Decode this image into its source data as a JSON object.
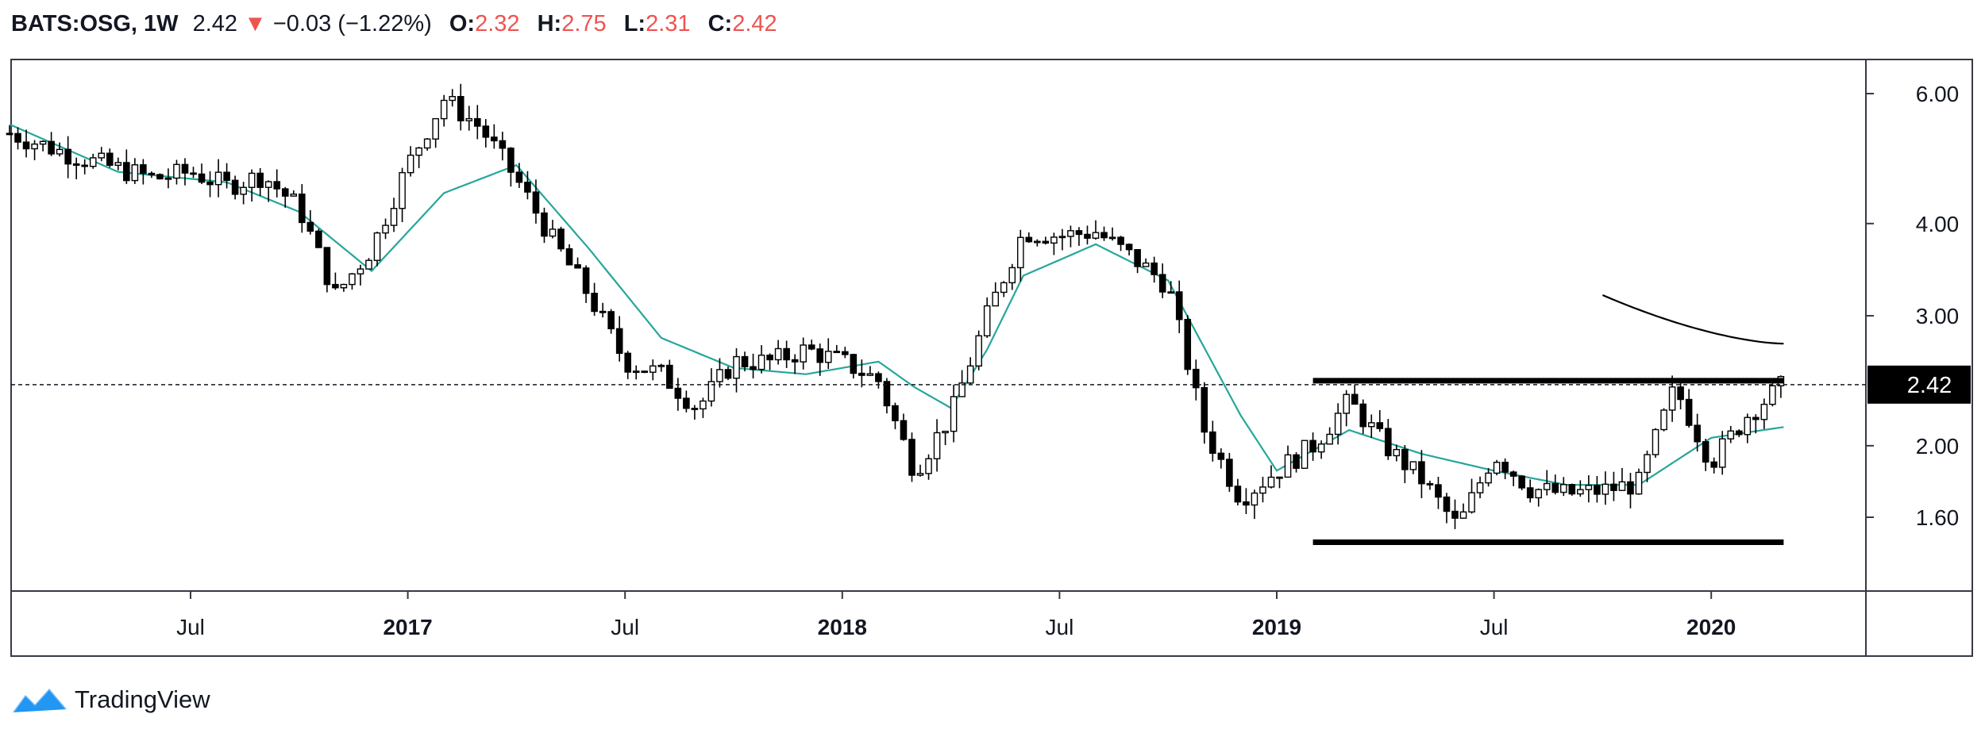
{
  "header": {
    "symbol": "BATS:OSG, 1W",
    "price": "2.42",
    "change": "−0.03 (−1.22%)",
    "open_label": "O:",
    "open": "2.32",
    "high_label": "H:",
    "high": "2.75",
    "low_label": "L:",
    "low": "2.31",
    "close_label": "C:",
    "close": "2.42",
    "down_color": "#ef5350"
  },
  "footer": {
    "brand": "TradingView",
    "logo_color": "#2196f3"
  },
  "chart_data": {
    "type": "candlestick",
    "symbol": "BATS:OSG",
    "interval": "1W",
    "y_scale": "log",
    "yticks": [
      "6.00",
      "4.00",
      "3.00",
      "2.00",
      "1.60"
    ],
    "xticks": [
      {
        "label": "Jul",
        "date": "2016-07",
        "bold": false
      },
      {
        "label": "2017",
        "date": "2017-01",
        "bold": true
      },
      {
        "label": "Jul",
        "date": "2017-07",
        "bold": false
      },
      {
        "label": "2018",
        "date": "2018-01",
        "bold": true
      },
      {
        "label": "Jul",
        "date": "2018-07",
        "bold": false
      },
      {
        "label": "2019",
        "date": "2019-01",
        "bold": true
      },
      {
        "label": "Jul",
        "date": "2019-07",
        "bold": false
      },
      {
        "label": "2020",
        "date": "2020-01",
        "bold": true
      }
    ],
    "last_price": "2.42",
    "price_path": [
      [
        "2016-02",
        5.3
      ],
      [
        "2016-04",
        4.9
      ],
      [
        "2016-06",
        4.6
      ],
      [
        "2016-07",
        4.7
      ],
      [
        "2016-08",
        4.5
      ],
      [
        "2016-09",
        4.65
      ],
      [
        "2016-10",
        4.2
      ],
      [
        "2016-11",
        3.2
      ],
      [
        "2016-12",
        3.7
      ],
      [
        "2017-01",
        4.8
      ],
      [
        "2017-02",
        5.9
      ],
      [
        "2017-03",
        5.4
      ],
      [
        "2017-04",
        4.6
      ],
      [
        "2017-05",
        3.8
      ],
      [
        "2017-06",
        3.2
      ],
      [
        "2017-07",
        2.6
      ],
      [
        "2017-08",
        2.5
      ],
      [
        "2017-09",
        2.25
      ],
      [
        "2017-10",
        2.6
      ],
      [
        "2017-11",
        2.6
      ],
      [
        "2017-12",
        2.7
      ],
      [
        "2018-01",
        2.6
      ],
      [
        "2018-02",
        2.45
      ],
      [
        "2018-03",
        1.85
      ],
      [
        "2018-04",
        2.2
      ],
      [
        "2018-05",
        3.0
      ],
      [
        "2018-06",
        3.9
      ],
      [
        "2018-07",
        3.85
      ],
      [
        "2018-08",
        3.9
      ],
      [
        "2018-09",
        3.6
      ],
      [
        "2018-10",
        3.3
      ],
      [
        "2018-11",
        2.1
      ],
      [
        "2018-12",
        1.7
      ],
      [
        "2019-01",
        1.85
      ],
      [
        "2019-02",
        2.0
      ],
      [
        "2019-03",
        2.3
      ],
      [
        "2019-04",
        2.0
      ],
      [
        "2019-05",
        1.8
      ],
      [
        "2019-06",
        1.55
      ],
      [
        "2019-07",
        1.95
      ],
      [
        "2019-08",
        1.75
      ],
      [
        "2019-09",
        1.72
      ],
      [
        "2019-10",
        1.74
      ],
      [
        "2019-11",
        1.78
      ],
      [
        "2019-12",
        2.4
      ],
      [
        "2020-01",
        1.9
      ],
      [
        "2020-02",
        2.2
      ],
      [
        "2020-03",
        2.42
      ]
    ],
    "moving_average": [
      [
        "2016-02",
        5.45
      ],
      [
        "2016-05",
        4.7
      ],
      [
        "2016-08",
        4.55
      ],
      [
        "2016-10",
        4.15
      ],
      [
        "2016-12",
        3.45
      ],
      [
        "2017-02",
        4.4
      ],
      [
        "2017-04",
        4.8
      ],
      [
        "2017-06",
        3.7
      ],
      [
        "2017-08",
        2.8
      ],
      [
        "2017-10",
        2.55
      ],
      [
        "2017-12",
        2.5
      ],
      [
        "2018-02",
        2.6
      ],
      [
        "2018-03",
        2.4
      ],
      [
        "2018-04",
        2.25
      ],
      [
        "2018-05",
        2.7
      ],
      [
        "2018-06",
        3.4
      ],
      [
        "2018-08",
        3.75
      ],
      [
        "2018-10",
        3.35
      ],
      [
        "2018-12",
        2.2
      ],
      [
        "2019-01",
        1.85
      ],
      [
        "2019-03",
        2.1
      ],
      [
        "2019-05",
        1.95
      ],
      [
        "2019-07",
        1.85
      ],
      [
        "2019-09",
        1.77
      ],
      [
        "2019-11",
        1.77
      ],
      [
        "2020-01",
        2.05
      ],
      [
        "2020-03",
        2.12
      ]
    ],
    "annotations": {
      "resistance": {
        "price": 2.45,
        "from": "2019-02",
        "to": "2020-03"
      },
      "support": {
        "price": 1.48,
        "from": "2019-02",
        "to": "2020-03"
      },
      "trendline": [
        [
          "2019-10",
          3.2
        ],
        [
          "2020-03",
          2.75
        ]
      ]
    }
  }
}
